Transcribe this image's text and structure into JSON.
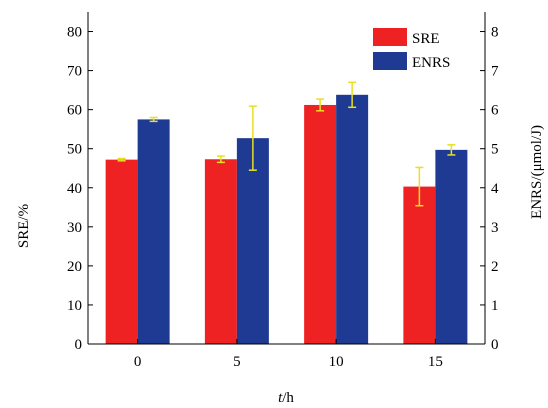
{
  "chart_data": {
    "type": "bar",
    "categories": [
      "0",
      "5",
      "10",
      "15"
    ],
    "series": [
      {
        "name": "SRE",
        "axis": "left",
        "color": "#ee2222",
        "values": [
          47.2,
          47.3,
          61.2,
          40.3
        ],
        "error": [
          0.3,
          0.8,
          1.5,
          4.9
        ]
      },
      {
        "name": "ENRS",
        "axis": "right",
        "color": "#1f3a93",
        "values": [
          5.75,
          5.27,
          6.38,
          4.97
        ],
        "error": [
          0.05,
          0.82,
          0.32,
          0.13
        ]
      }
    ],
    "xlabel_italic": "t",
    "xlabel_rest": "/h",
    "ylabel": "SRE/%",
    "y2label": "ENRS/(μmol/J)",
    "ylim": [
      0,
      85
    ],
    "y2lim": [
      0,
      8.5
    ],
    "yticks": [
      "0",
      "10",
      "20",
      "30",
      "40",
      "50",
      "60",
      "70",
      "80"
    ],
    "y2ticks": [
      "0",
      "1",
      "2",
      "3",
      "4",
      "5",
      "6",
      "7",
      "8"
    ],
    "errorbar_color": "#e8e020",
    "legend_position": "top-right",
    "grid": false
  }
}
